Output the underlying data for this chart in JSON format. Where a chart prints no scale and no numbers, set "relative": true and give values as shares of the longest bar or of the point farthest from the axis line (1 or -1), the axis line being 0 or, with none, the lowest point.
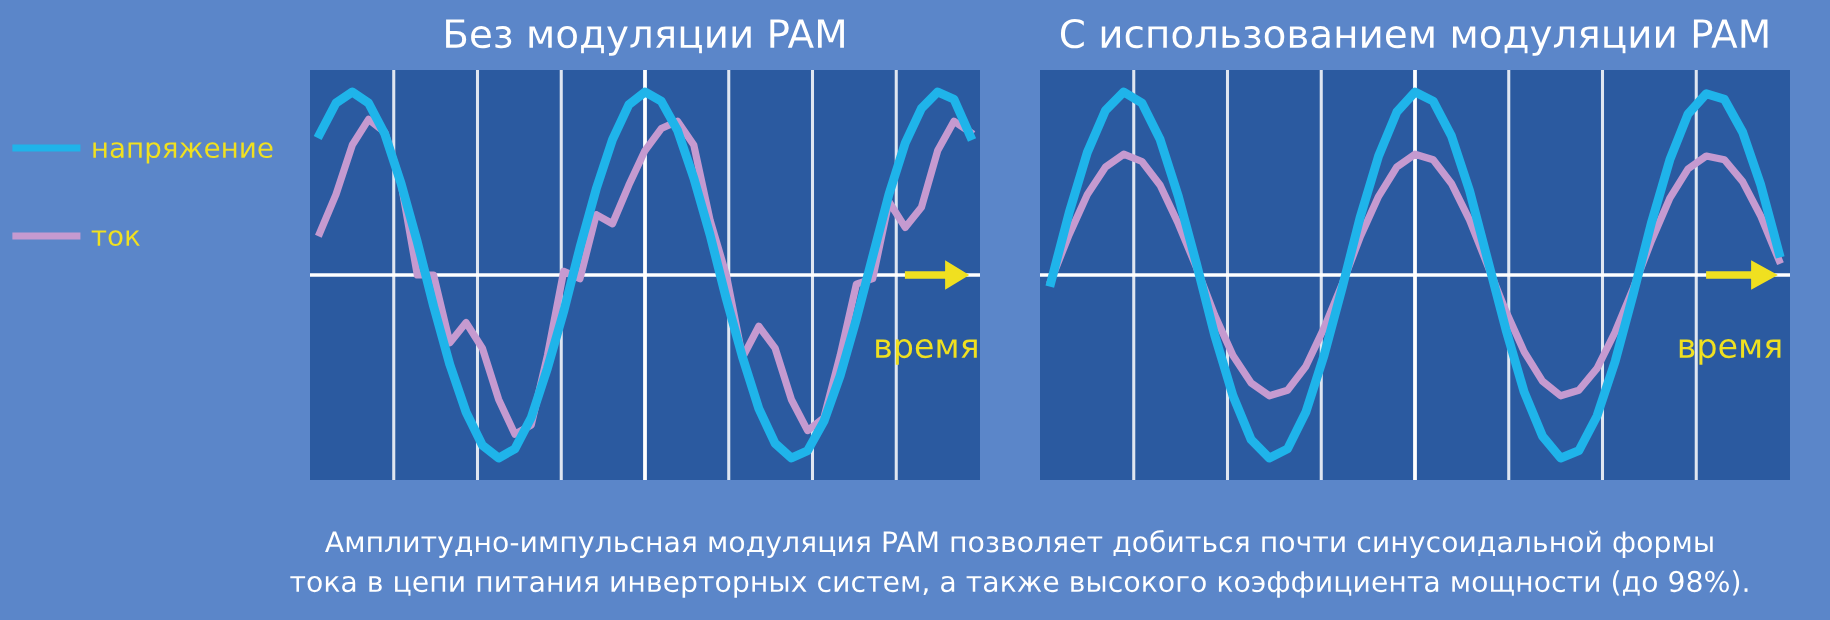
{
  "chart_data": [
    {
      "type": "line",
      "title": "Без модуляции PAM",
      "xlabel": "время",
      "relative": true,
      "legend": "left",
      "grid": true,
      "tick_labels": false,
      "marker": "none",
      "line_style": "solid",
      "categories": [
        null,
        null,
        null,
        null,
        null,
        null,
        null,
        null,
        null,
        null,
        null,
        null,
        null,
        null,
        null,
        null,
        null,
        null,
        null,
        null,
        null,
        null,
        null,
        null,
        null,
        null,
        null,
        null,
        null,
        null,
        null,
        null,
        null,
        null,
        null,
        null,
        null,
        null,
        null,
        null,
        null
      ],
      "series": [
        {
          "name": "напряжение",
          "color": "#1fb4ea",
          "values": [
            0.77,
            0.94,
            1.0,
            0.94,
            0.77,
            0.5,
            0.18,
            -0.17,
            -0.49,
            -0.75,
            -0.93,
            -1.0,
            -0.95,
            -0.78,
            -0.51,
            -0.2,
            0.15,
            0.47,
            0.74,
            0.93,
            1.0,
            0.95,
            0.79,
            0.53,
            0.22,
            -0.13,
            -0.45,
            -0.73,
            -0.92,
            -1.0,
            -0.96,
            -0.8,
            -0.55,
            -0.24,
            0.1,
            0.44,
            0.72,
            0.91,
            1.0,
            0.96,
            0.76
          ]
        },
        {
          "name": "ток",
          "color": "#c59ad0",
          "values": [
            0.23,
            0.44,
            0.71,
            0.85,
            0.78,
            0.5,
            0.0,
            0.0,
            -0.37,
            -0.26,
            -0.4,
            -0.68,
            -0.87,
            -0.82,
            -0.44,
            0.02,
            -0.02,
            0.33,
            0.28,
            0.49,
            0.68,
            0.8,
            0.84,
            0.71,
            0.3,
            0.0,
            -0.45,
            -0.28,
            -0.4,
            -0.68,
            -0.85,
            -0.78,
            -0.44,
            -0.05,
            -0.02,
            0.4,
            0.26,
            0.37,
            0.68,
            0.84,
            0.78
          ]
        }
      ]
    },
    {
      "type": "line",
      "title": "С использованием модуляции PAM",
      "xlabel": "время",
      "relative": true,
      "grid": true,
      "tick_labels": false,
      "marker": "none",
      "line_style": "solid",
      "categories": [
        null,
        null,
        null,
        null,
        null,
        null,
        null,
        null,
        null,
        null,
        null,
        null,
        null,
        null,
        null,
        null,
        null,
        null,
        null,
        null,
        null,
        null,
        null,
        null,
        null,
        null,
        null,
        null,
        null,
        null,
        null,
        null,
        null,
        null,
        null,
        null,
        null,
        null,
        null,
        null,
        null
      ],
      "series": [
        {
          "color": "#1fb4ea",
          "values": [
            -0.04,
            0.34,
            0.67,
            0.9,
            1.0,
            0.94,
            0.74,
            0.43,
            0.06,
            -0.33,
            -0.66,
            -0.9,
            -1.0,
            -0.95,
            -0.75,
            -0.44,
            -0.07,
            0.32,
            0.65,
            0.89,
            1.0,
            0.95,
            0.76,
            0.46,
            0.08,
            -0.3,
            -0.64,
            -0.88,
            -1.0,
            -0.96,
            -0.77,
            -0.47,
            -0.1,
            0.29,
            0.63,
            0.88,
            0.99,
            0.96,
            0.78,
            0.49,
            0.12
          ]
        },
        {
          "color": "#c59ad0",
          "values": [
            -0.03,
            0.22,
            0.44,
            0.59,
            0.66,
            0.62,
            0.49,
            0.28,
            0.04,
            -0.22,
            -0.44,
            -0.59,
            -0.66,
            -0.63,
            -0.5,
            -0.29,
            -0.05,
            0.21,
            0.43,
            0.59,
            0.66,
            0.63,
            0.5,
            0.3,
            0.05,
            -0.2,
            -0.42,
            -0.58,
            -0.66,
            -0.63,
            -0.51,
            -0.31,
            -0.07,
            0.19,
            0.42,
            0.58,
            0.65,
            0.63,
            0.51,
            0.32,
            0.08
          ]
        }
      ],
      "annotations": [
        "Амплитудно-импульсная модуляция PAM позволяет добиться почти синусоидальной формы",
        "тока в цепи питания инверторных систем, а также высокого коэффициента мощности (до 98%)."
      ]
    }
  ]
}
